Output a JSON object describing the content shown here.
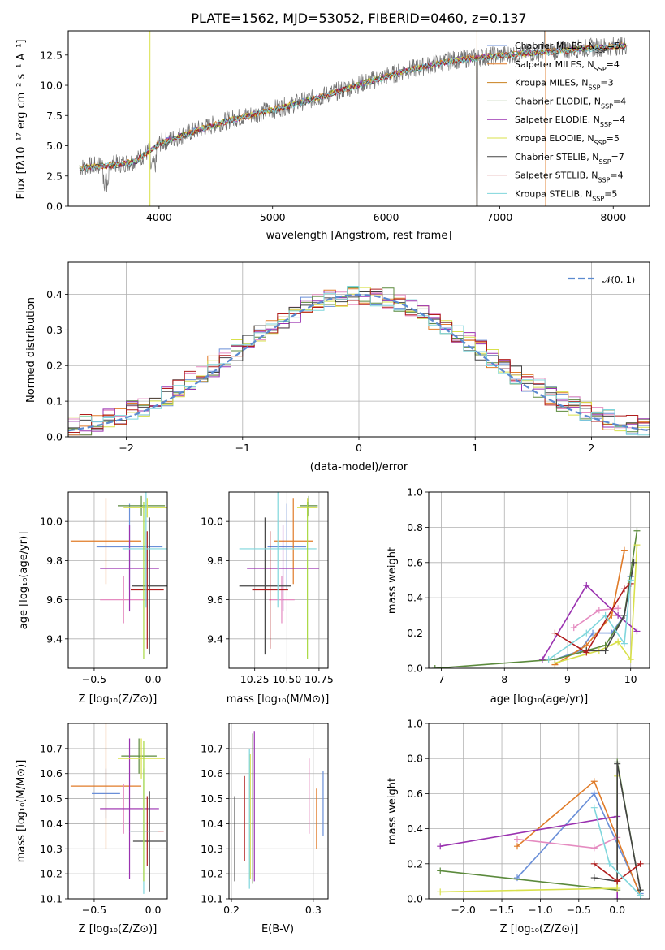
{
  "chart_data": [
    {
      "id": "spectrum",
      "type": "line",
      "title": "PLATE=1562, MJD=53052, FIBERID=0460, z=0.137",
      "xlabel": "wavelength [Angstrom, rest frame]",
      "ylabel": "Flux [fλ10⁻¹⁷ erg cm⁻² s⁻¹ A⁻¹]",
      "xlim": [
        3200,
        8320
      ],
      "ylim": [
        0,
        14.5
      ],
      "xticks": [
        "4000",
        "5000",
        "6000",
        "7000",
        "8000"
      ],
      "yticks": [
        "0.0",
        "2.5",
        "5.0",
        "7.5",
        "10.0",
        "12.5"
      ],
      "legend": "upper right",
      "data_continuum": {
        "x": [
          3300,
          3500,
          3650,
          3800,
          4000,
          4300,
          4600,
          5000,
          5400,
          5800,
          6200,
          6600,
          7000,
          7400,
          7800,
          8100
        ],
        "y": [
          3.2,
          3.4,
          3.5,
          3.8,
          5.2,
          6.2,
          7.1,
          8.0,
          9.0,
          10.2,
          11.3,
          12.1,
          12.5,
          12.8,
          13.1,
          13.3
        ]
      },
      "series": [
        {
          "name": "Chabrier MILES, N$_{SSP}$=5",
          "legend": "Chabrier MILES, N",
          "n": "5",
          "color": "#6a8fd8"
        },
        {
          "name": "Salpeter MILES, N$_{SSP}$=4",
          "legend": "Salpeter MILES, N",
          "n": "4",
          "color": "#e07b28"
        },
        {
          "name": "Kroupa MILES, N$_{SSP}$=3",
          "legend": "Kroupa MILES, N",
          "n": "3",
          "color": "#c9801e"
        },
        {
          "name": "Chabrier ELODIE, N$_{SSP}$=4",
          "legend": "Chabrier ELODIE, N",
          "n": "4",
          "color": "#5b8a3c"
        },
        {
          "name": "Salpeter ELODIE, N$_{SSP}$=4",
          "legend": "Salpeter ELODIE, N",
          "n": "4",
          "color": "#9a32b0"
        },
        {
          "name": "Kroupa ELODIE, N$_{SSP}$=5",
          "legend": "Kroupa ELODIE, N",
          "n": "5",
          "color": "#d8e04a"
        },
        {
          "name": "Chabrier STELIB, N$_{SSP}$=7",
          "legend": "Chabrier STELIB, N",
          "n": "7",
          "color": "#444444"
        },
        {
          "name": "Salpeter STELIB, N$_{SSP}$=4",
          "legend": "Salpeter STELIB, N",
          "n": "4",
          "color": "#b01e1e"
        },
        {
          "name": "Kroupa STELIB, N$_{SSP}$=5",
          "legend": "Kroupa STELIB, N",
          "n": "5",
          "color": "#7fd6dc"
        }
      ],
      "legend_subscript": "SSP"
    },
    {
      "id": "residuals",
      "type": "line",
      "xlabel": "(data-model)/error",
      "ylabel": "Normed distribution",
      "xlim": [
        -2.5,
        2.5
      ],
      "ylim": [
        0,
        0.49
      ],
      "xticks": [
        "−2",
        "−1",
        "0",
        "1",
        "2"
      ],
      "yticks": [
        "0.0",
        "0.1",
        "0.2",
        "0.3",
        "0.4"
      ],
      "legend": "upper right",
      "legend_label": "𝒩(0, 1)",
      "normal_color": "#5b8ad0",
      "bin_edges_start": -2.5,
      "bin_width": 0.1,
      "hist_colors": [
        "#6a8fd8",
        "#e07b28",
        "#e58bc0",
        "#5b8a3c",
        "#9a32b0",
        "#d8e04a",
        "#444444",
        "#b01e1e",
        "#7fd6dc"
      ]
    },
    {
      "id": "age_vs_Z",
      "type": "scatter",
      "xlabel": "Z [log₁₀(Z/Z⊙)]",
      "ylabel": "age  [log₁₀(age/yr)]",
      "xlim": [
        -0.72,
        0.12
      ],
      "ylim": [
        9.25,
        10.15
      ],
      "xticks": [
        "−0.5",
        "0.0"
      ],
      "yticks": [
        "9.4",
        "9.6",
        "9.8",
        "10.0"
      ],
      "points": [
        {
          "x": -0.2,
          "y": 9.87,
          "xerr": 0.28,
          "yerr": 0.22,
          "color": "#6a8fd8"
        },
        {
          "x": -0.4,
          "y": 9.9,
          "xerr": 0.3,
          "yerr": 0.22,
          "color": "#e07b28"
        },
        {
          "x": -0.25,
          "y": 9.6,
          "xerr": 0.2,
          "yerr": 0.12,
          "color": "#e58bc0"
        },
        {
          "x": -0.1,
          "y": 10.08,
          "xerr": 0.2,
          "yerr": 0.05,
          "color": "#5b8a3c"
        },
        {
          "x": -0.2,
          "y": 9.76,
          "xerr": 0.25,
          "yerr": 0.22,
          "color": "#9a32b0"
        },
        {
          "x": -0.05,
          "y": 10.07,
          "xerr": 0.2,
          "yerr": 0.05,
          "color": "#d8e04a"
        },
        {
          "x": -0.03,
          "y": 9.67,
          "xerr": 0.15,
          "yerr": 0.35,
          "color": "#444444"
        },
        {
          "x": -0.05,
          "y": 9.65,
          "xerr": 0.14,
          "yerr": 0.3,
          "color": "#b01e1e"
        },
        {
          "x": -0.06,
          "y": 9.86,
          "xerr": 0.2,
          "yerr": 0.3,
          "color": "#7fd6dc"
        },
        {
          "x": -0.08,
          "y": 9.7,
          "xerr": 0.0,
          "yerr": 0.4,
          "color": "#a8d840"
        }
      ]
    },
    {
      "id": "age_vs_mass",
      "type": "scatter",
      "xlabel": "mass [log₁₀(M/M⊙)]",
      "ylabel": "",
      "xlim": [
        10.05,
        10.82
      ],
      "ylim": [
        9.25,
        10.15
      ],
      "xticks": [
        "10.25",
        "10.50",
        "10.75"
      ],
      "yticks": [
        "9.4",
        "9.6",
        "9.8",
        "10.0"
      ],
      "points": [
        {
          "x": 10.5,
          "y": 9.87,
          "xerr": 0.15,
          "yerr": 0.22,
          "color": "#6a8fd8"
        },
        {
          "x": 10.55,
          "y": 9.9,
          "xerr": 0.15,
          "yerr": 0.22,
          "color": "#e07b28"
        },
        {
          "x": 10.46,
          "y": 9.6,
          "xerr": 0.1,
          "yerr": 0.12,
          "color": "#e58bc0"
        },
        {
          "x": 10.67,
          "y": 10.08,
          "xerr": 0.07,
          "yerr": 0.05,
          "color": "#5b8a3c"
        },
        {
          "x": 10.47,
          "y": 9.76,
          "xerr": 0.28,
          "yerr": 0.22,
          "color": "#9a32b0"
        },
        {
          "x": 10.66,
          "y": 10.07,
          "xerr": 0.08,
          "yerr": 0.05,
          "color": "#d8e04a"
        },
        {
          "x": 10.33,
          "y": 9.67,
          "xerr": 0.2,
          "yerr": 0.35,
          "color": "#444444"
        },
        {
          "x": 10.37,
          "y": 9.65,
          "xerr": 0.14,
          "yerr": 0.3,
          "color": "#b01e1e"
        },
        {
          "x": 10.43,
          "y": 9.86,
          "xerr": 0.3,
          "yerr": 0.3,
          "color": "#7fd6dc"
        },
        {
          "x": 10.66,
          "y": 9.7,
          "xerr": 0.0,
          "yerr": 0.4,
          "color": "#a8d840"
        }
      ]
    },
    {
      "id": "weight_vs_age",
      "type": "line",
      "xlabel": "age  [log₁₀(age/yr)]",
      "ylabel": "mass weight",
      "xlim": [
        6.8,
        10.3
      ],
      "ylim": [
        0,
        1.0
      ],
      "xticks": [
        "7",
        "8",
        "9",
        "10"
      ],
      "yticks": [
        "0.0",
        "0.2",
        "0.4",
        "0.6",
        "0.8",
        "1.0"
      ],
      "series": [
        {
          "color": "#6a8fd8",
          "x": [
            8.8,
            9.2,
            9.4,
            9.7,
            9.9,
            10.0
          ],
          "y": [
            0.05,
            0.1,
            0.2,
            0.2,
            0.3,
            0.52
          ]
        },
        {
          "color": "#e07b28",
          "x": [
            8.8,
            9.3,
            9.7,
            9.9
          ],
          "y": [
            0.02,
            0.13,
            0.3,
            0.67
          ]
        },
        {
          "color": "#e58bc0",
          "x": [
            9.1,
            9.5,
            9.8
          ],
          "y": [
            0.23,
            0.33,
            0.34
          ]
        },
        {
          "color": "#5b8a3c",
          "x": [
            6.9,
            8.8,
            9.3,
            9.6,
            9.9,
            10.1
          ],
          "y": [
            0.0,
            0.05,
            0.1,
            0.13,
            0.3,
            0.78
          ]
        },
        {
          "color": "#9a32b0",
          "x": [
            8.6,
            9.3,
            9.8,
            10.1
          ],
          "y": [
            0.05,
            0.47,
            0.3,
            0.21
          ]
        },
        {
          "color": "#d8e04a",
          "x": [
            8.8,
            9.5,
            9.8,
            10.0,
            10.1
          ],
          "y": [
            0.03,
            0.1,
            0.15,
            0.05,
            0.7
          ]
        },
        {
          "color": "#444444",
          "x": [
            9.3,
            9.6,
            9.9,
            10.05
          ],
          "y": [
            0.1,
            0.1,
            0.3,
            0.6
          ]
        },
        {
          "color": "#b01e1e",
          "x": [
            8.8,
            9.3,
            9.9,
            10.0
          ],
          "y": [
            0.2,
            0.09,
            0.45,
            0.48
          ]
        },
        {
          "color": "#7fd6dc",
          "x": [
            8.7,
            9.3,
            9.6,
            9.9,
            10.0
          ],
          "y": [
            0.05,
            0.2,
            0.3,
            0.14,
            0.5
          ]
        }
      ]
    },
    {
      "id": "mass_vs_Z",
      "type": "scatter",
      "xlabel": "Z [log₁₀(Z/Z⊙)]",
      "ylabel": "mass [log₁₀(M/M⊙)]",
      "xlim": [
        -0.72,
        0.12
      ],
      "ylim": [
        10.1,
        10.8
      ],
      "xticks": [
        "−0.5",
        "0.0"
      ],
      "yticks": [
        "10.1",
        "10.2",
        "10.3",
        "10.4",
        "10.5",
        "10.6",
        "10.7"
      ],
      "points": [
        {
          "x": -0.4,
          "y": 10.52,
          "xerr": 0.12,
          "yerr": 0.1,
          "color": "#6a8fd8"
        },
        {
          "x": -0.4,
          "y": 10.55,
          "xerr": 0.3,
          "yerr": 0.25,
          "color": "#e07b28"
        },
        {
          "x": -0.25,
          "y": 10.46,
          "xerr": 0.2,
          "yerr": 0.1,
          "color": "#e58bc0"
        },
        {
          "x": -0.12,
          "y": 10.67,
          "xerr": 0.15,
          "yerr": 0.07,
          "color": "#5b8a3c"
        },
        {
          "x": -0.2,
          "y": 10.46,
          "xerr": 0.25,
          "yerr": 0.28,
          "color": "#9a32b0"
        },
        {
          "x": -0.1,
          "y": 10.66,
          "xerr": 0.2,
          "yerr": 0.08,
          "color": "#d8e04a"
        },
        {
          "x": -0.03,
          "y": 10.33,
          "xerr": 0.14,
          "yerr": 0.2,
          "color": "#444444"
        },
        {
          "x": -0.05,
          "y": 10.37,
          "xerr": 0.14,
          "yerr": 0.14,
          "color": "#b01e1e"
        },
        {
          "x": -0.08,
          "y": 10.37,
          "xerr": 0.12,
          "yerr": 0.25,
          "color": "#7fd6dc"
        },
        {
          "x": -0.08,
          "y": 10.45,
          "xerr": 0.0,
          "yerr": 0.28,
          "color": "#a8d840"
        }
      ]
    },
    {
      "id": "mass_vs_EBV",
      "type": "scatter",
      "xlabel": "E(B-V)",
      "ylabel": "",
      "xlim": [
        0.197,
        0.318
      ],
      "ylim": [
        10.1,
        10.8
      ],
      "xticks": [
        "0.2",
        "0.3"
      ],
      "yticks": [
        "10.1",
        "10.2",
        "10.3",
        "10.4",
        "10.5",
        "10.6",
        "10.7"
      ],
      "points": [
        {
          "x": 0.312,
          "y": 10.48,
          "yerr": 0.13,
          "color": "#6a8fd8"
        },
        {
          "x": 0.304,
          "y": 10.42,
          "yerr": 0.12,
          "color": "#e07b28"
        },
        {
          "x": 0.295,
          "y": 10.51,
          "yerr": 0.15,
          "color": "#e58bc0"
        },
        {
          "x": 0.226,
          "y": 10.46,
          "yerr": 0.3,
          "color": "#5b8a3c"
        },
        {
          "x": 0.228,
          "y": 10.47,
          "yerr": 0.3,
          "color": "#9a32b0"
        },
        {
          "x": 0.223,
          "y": 10.43,
          "yerr": 0.25,
          "color": "#d8e04a"
        },
        {
          "x": 0.204,
          "y": 10.34,
          "yerr": 0.17,
          "color": "#444444"
        },
        {
          "x": 0.216,
          "y": 10.42,
          "yerr": 0.17,
          "color": "#b01e1e"
        },
        {
          "x": 0.222,
          "y": 10.42,
          "yerr": 0.28,
          "color": "#7fd6dc"
        }
      ]
    },
    {
      "id": "weight_vs_Z",
      "type": "line",
      "xlabel": "Z [log₁₀(Z/Z⊙)]",
      "ylabel": "mass weight",
      "xlim": [
        -2.45,
        0.42
      ],
      "ylim": [
        0,
        1.0
      ],
      "xticks": [
        "−2.0",
        "−1.5",
        "−1.0",
        "−0.5",
        "0.0"
      ],
      "yticks": [
        "0.0",
        "0.2",
        "0.4",
        "0.6",
        "0.8",
        "1.0"
      ],
      "series": [
        {
          "color": "#6a8fd8",
          "x": [
            -1.3,
            -0.3,
            0.3
          ],
          "y": [
            0.12,
            0.6,
            0.03
          ]
        },
        {
          "color": "#e07b28",
          "x": [
            -1.3,
            -0.3,
            0.3
          ],
          "y": [
            0.3,
            0.67,
            0.02
          ]
        },
        {
          "color": "#e58bc0",
          "x": [
            -1.3,
            -0.3,
            0.0
          ],
          "y": [
            0.34,
            0.29,
            0.35
          ]
        },
        {
          "color": "#5b8a3c",
          "x": [
            -2.3,
            0.0,
            0.0,
            0.3
          ],
          "y": [
            0.16,
            0.05,
            0.78,
            0.05
          ]
        },
        {
          "color": "#9a32b0",
          "x": [
            -2.3,
            0.0,
            0.0
          ],
          "y": [
            0.3,
            0.47,
            0.0
          ]
        },
        {
          "color": "#d8e04a",
          "x": [
            -2.3,
            0.0,
            0.0
          ],
          "y": [
            0.04,
            0.06,
            0.7
          ]
        },
        {
          "color": "#444444",
          "x": [
            -0.3,
            0.0,
            0.0,
            0.3
          ],
          "y": [
            0.12,
            0.1,
            0.77,
            0.05
          ]
        },
        {
          "color": "#b01e1e",
          "x": [
            -0.3,
            0.0,
            0.3
          ],
          "y": [
            0.2,
            0.1,
            0.2
          ]
        },
        {
          "color": "#7fd6dc",
          "x": [
            -0.3,
            -0.1,
            0.3
          ],
          "y": [
            0.52,
            0.2,
            0.02
          ]
        }
      ]
    }
  ]
}
